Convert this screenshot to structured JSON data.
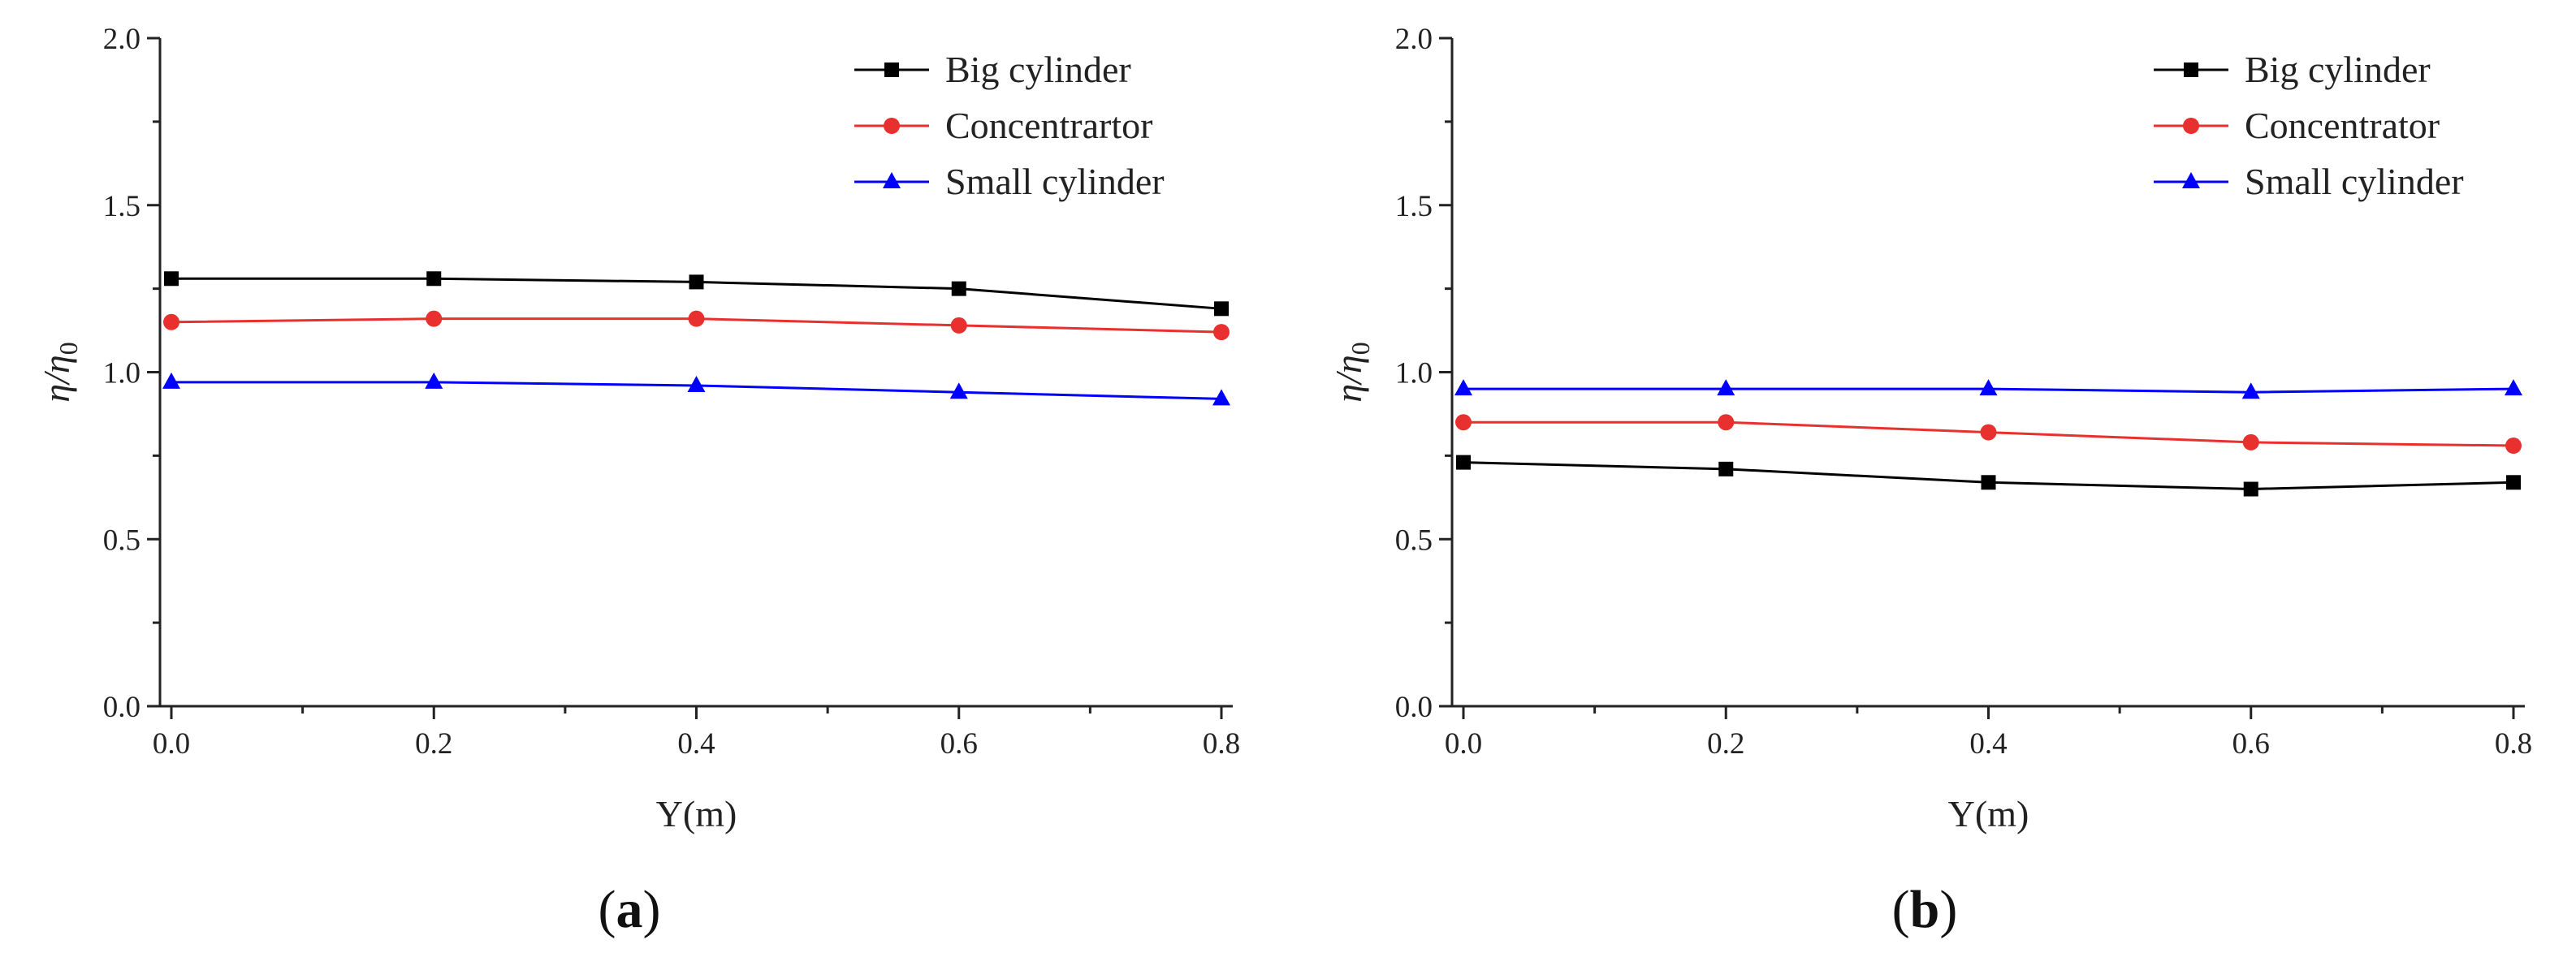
{
  "chart_data": [
    {
      "type": "line",
      "panel_label": "(a)",
      "panel_letter": "a",
      "xlabel": "Y(m)",
      "ylabel_main": "η/η",
      "ylabel_sub": "0",
      "xlim": [
        0,
        0.8
      ],
      "ylim": [
        0,
        2.0
      ],
      "xticks": [
        "0.0",
        "0.2",
        "0.4",
        "0.6",
        "0.8"
      ],
      "yticks": [
        "0.0",
        "0.5",
        "1.0",
        "1.5",
        "2.0"
      ],
      "legend_position": "top-right",
      "x": [
        0.0,
        0.2,
        0.4,
        0.6,
        0.8
      ],
      "series": [
        {
          "name": "Big cylinder",
          "color": "#000000",
          "marker": "square",
          "values": [
            1.28,
            1.28,
            1.27,
            1.25,
            1.19
          ]
        },
        {
          "name": "Concentrartor",
          "color": "#e8302e",
          "marker": "circle",
          "values": [
            1.15,
            1.16,
            1.16,
            1.14,
            1.12
          ]
        },
        {
          "name": "Small cylinder",
          "color": "#0000ff",
          "marker": "triangle",
          "values": [
            0.97,
            0.97,
            0.96,
            0.94,
            0.92
          ]
        }
      ]
    },
    {
      "type": "line",
      "panel_label": "(b)",
      "panel_letter": "b",
      "xlabel": "Y(m)",
      "ylabel_main": "η/η",
      "ylabel_sub": "0",
      "xlim": [
        0,
        0.8
      ],
      "ylim": [
        0,
        2.0
      ],
      "xticks": [
        "0.0",
        "0.2",
        "0.4",
        "0.6",
        "0.8"
      ],
      "yticks": [
        "0.0",
        "0.5",
        "1.0",
        "1.5",
        "2.0"
      ],
      "legend_position": "top-right",
      "x": [
        0.0,
        0.2,
        0.4,
        0.6,
        0.8
      ],
      "series": [
        {
          "name": "Big cylinder",
          "color": "#000000",
          "marker": "square",
          "values": [
            0.73,
            0.71,
            0.67,
            0.65,
            0.67
          ]
        },
        {
          "name": "Concentrator",
          "color": "#e8302e",
          "marker": "circle",
          "values": [
            0.85,
            0.85,
            0.82,
            0.79,
            0.78
          ]
        },
        {
          "name": "Small cylinder",
          "color": "#0000ff",
          "marker": "triangle",
          "values": [
            0.95,
            0.95,
            0.95,
            0.94,
            0.95
          ]
        }
      ]
    }
  ]
}
